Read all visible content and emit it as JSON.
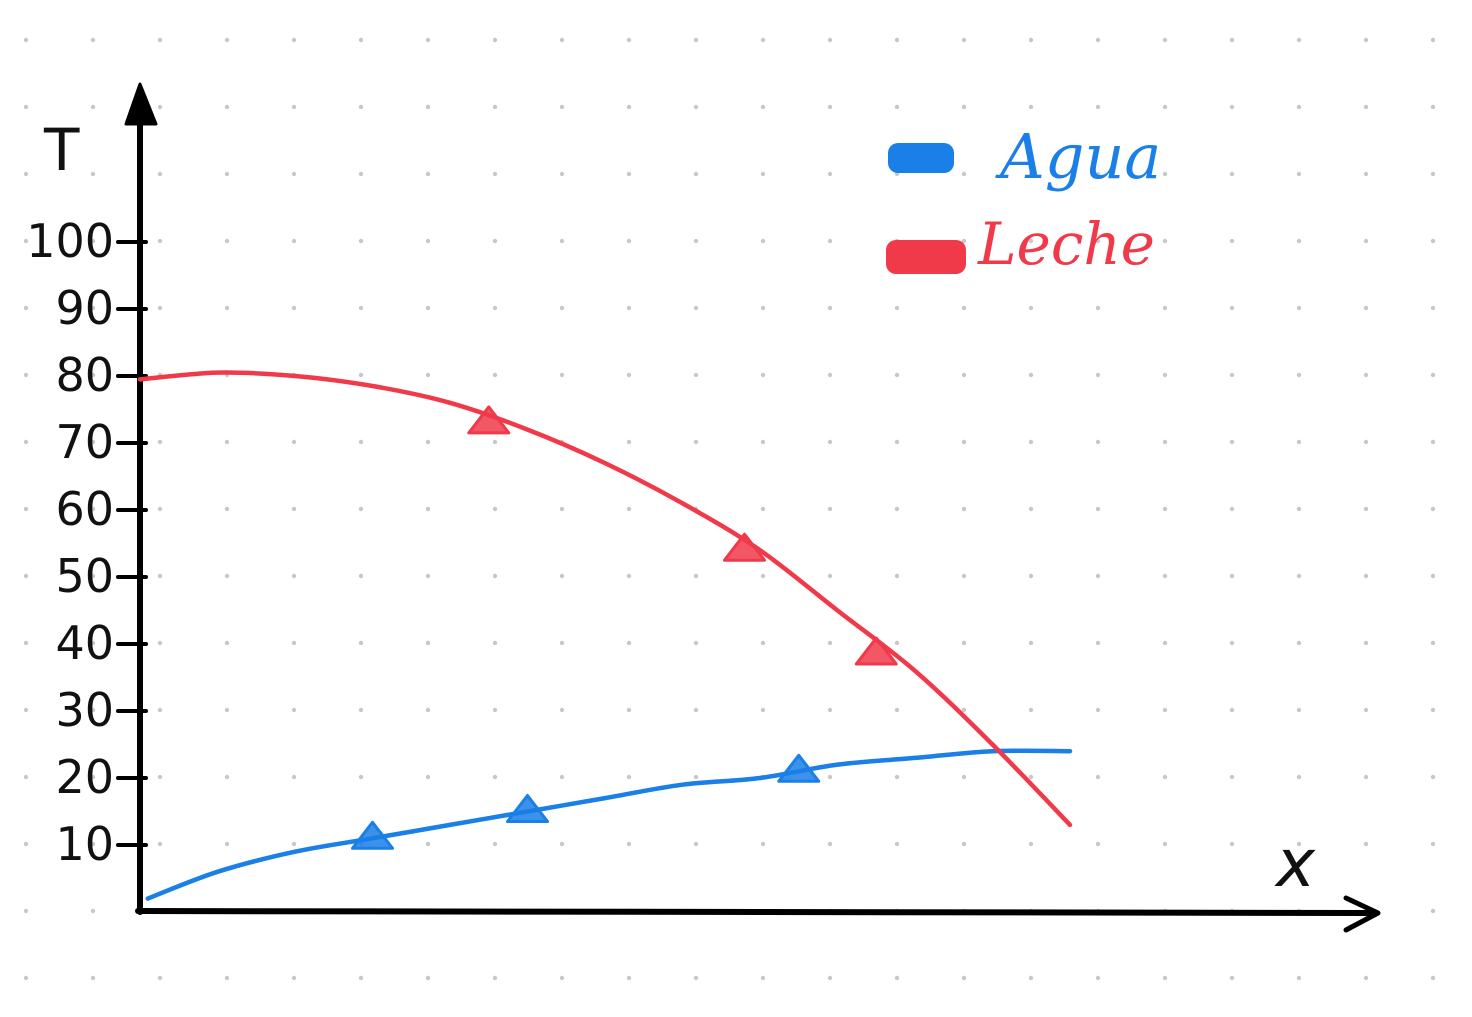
{
  "chart_data": {
    "type": "line",
    "xlabel": "x",
    "ylabel": "T",
    "ylim": [
      0,
      110
    ],
    "y_ticks": [
      10,
      20,
      30,
      40,
      50,
      60,
      70,
      80,
      90,
      100
    ],
    "y_tick_labels": [
      "10",
      "20",
      "30",
      "40",
      "50",
      "60",
      "70",
      "80",
      "90",
      "100"
    ],
    "grid": "dotted background",
    "legend_position": "top-right",
    "series": [
      {
        "name": "Agua",
        "color": "#1a7fe6",
        "points": [
          [
            0.1,
            2
          ],
          [
            1,
            6
          ],
          [
            2,
            9
          ],
          [
            3,
            11
          ],
          [
            4,
            13
          ],
          [
            5,
            15
          ],
          [
            6,
            17
          ],
          [
            7,
            19
          ],
          [
            8,
            20
          ],
          [
            9,
            22
          ],
          [
            10,
            23
          ],
          [
            11,
            24
          ],
          [
            12,
            24
          ]
        ],
        "markers": [
          [
            3,
            11
          ],
          [
            5,
            15
          ],
          [
            8.5,
            21
          ]
        ]
      },
      {
        "name": "Leche",
        "color": "#f03a4a",
        "points": [
          [
            0,
            79.5
          ],
          [
            1,
            80.5
          ],
          [
            2,
            80
          ],
          [
            3,
            78.5
          ],
          [
            4,
            76
          ],
          [
            5,
            72
          ],
          [
            6,
            67
          ],
          [
            7,
            61
          ],
          [
            8,
            54
          ],
          [
            9,
            45
          ],
          [
            10,
            36
          ],
          [
            11,
            25
          ],
          [
            12,
            13
          ]
        ],
        "markers": [
          [
            4.5,
            73
          ],
          [
            7.8,
            54
          ],
          [
            9.5,
            38.5
          ]
        ]
      }
    ]
  }
}
